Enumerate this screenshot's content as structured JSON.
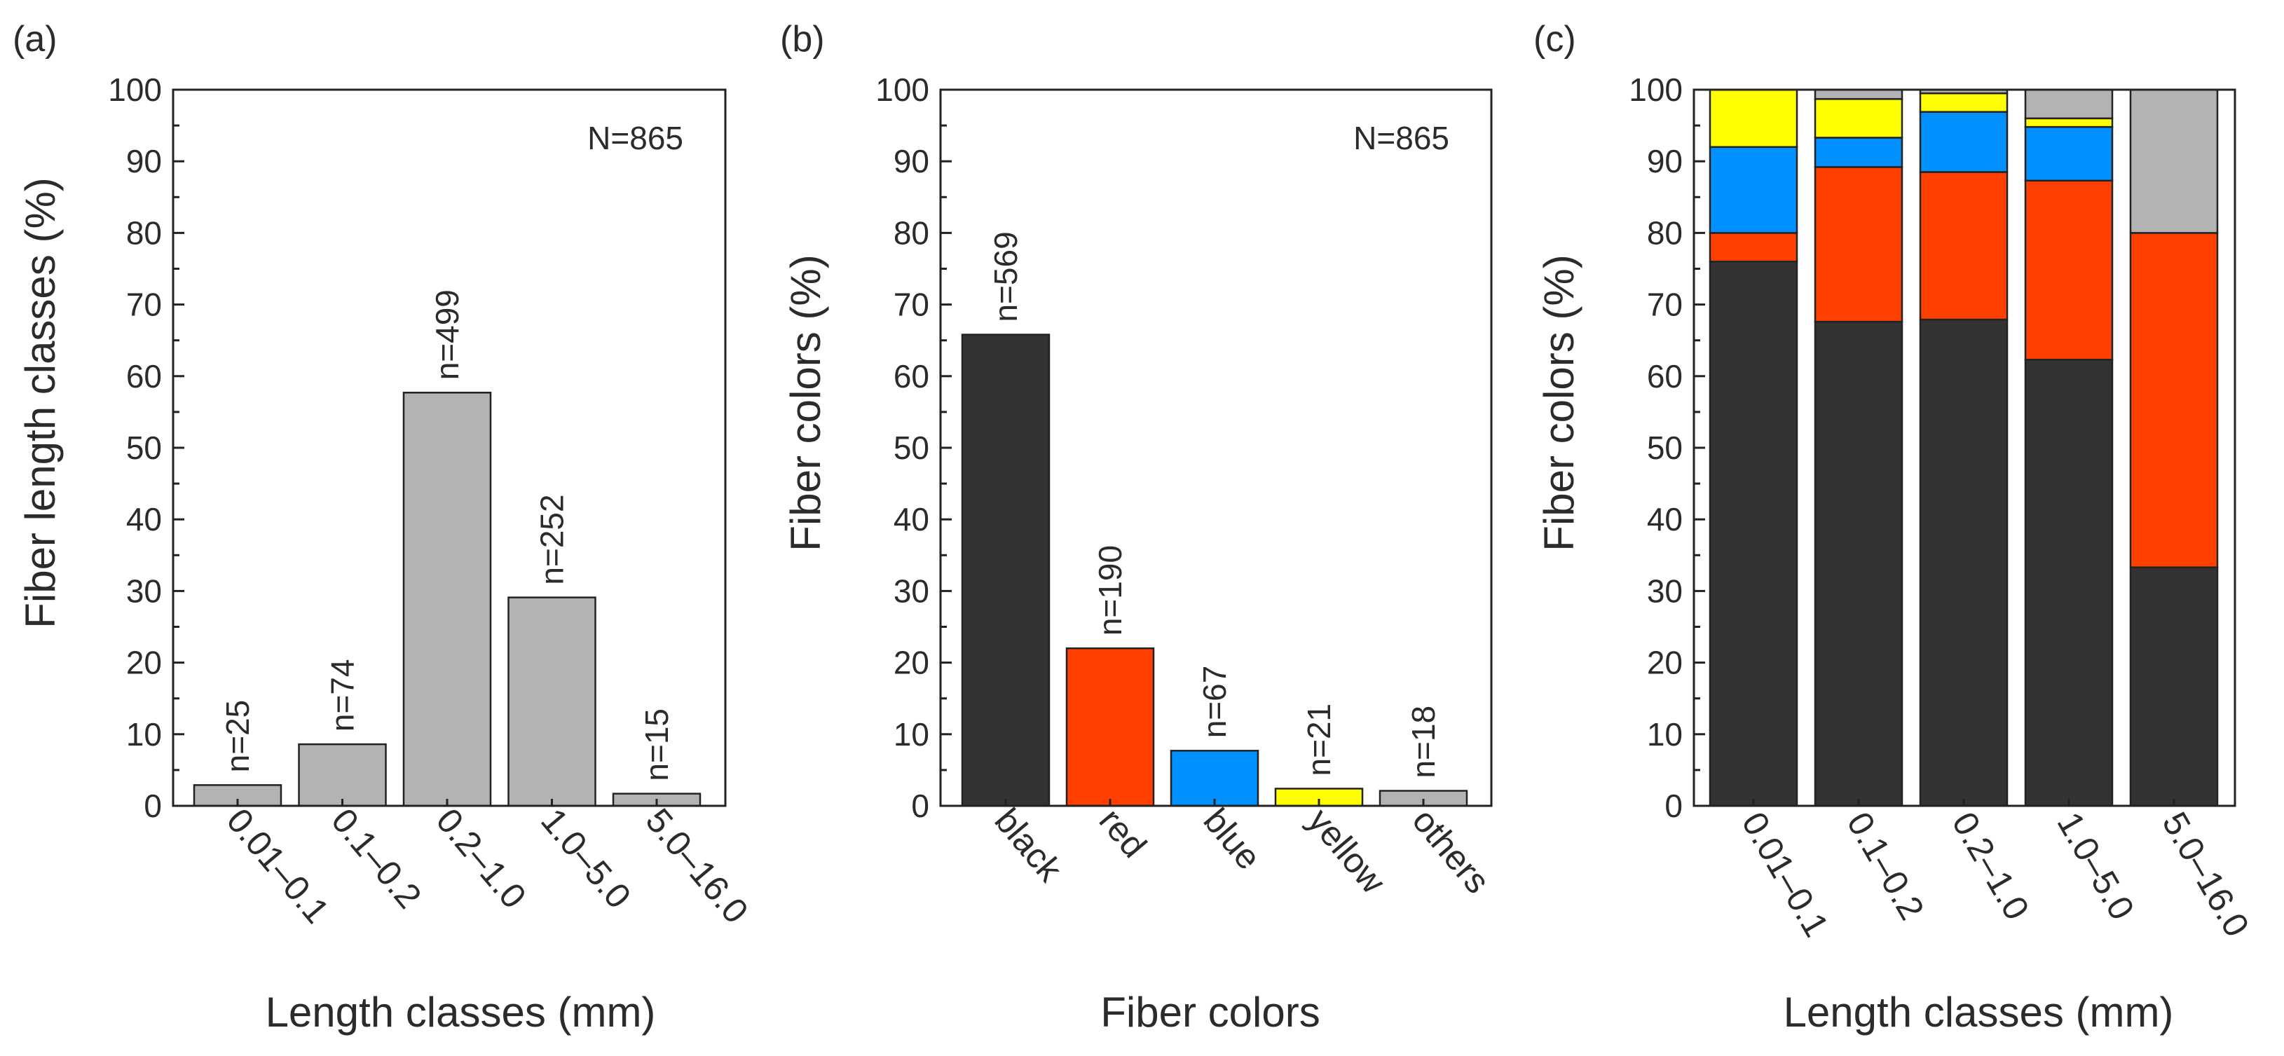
{
  "chart_data": [
    {
      "type": "bar",
      "panel_label": "(a)",
      "total_label": "N=865",
      "xlabel": "Length classes (mm)",
      "ylabel": "Fiber length classes (%)",
      "ylim": [
        0,
        100
      ],
      "yticks": [
        "0",
        "10",
        "20",
        "30",
        "40",
        "50",
        "60",
        "70",
        "80",
        "90",
        "100"
      ],
      "categories": [
        "0.01–0.1",
        "0.1–0.2",
        "0.2–1.0",
        "1.0–5.0",
        "5.0–16.0"
      ],
      "values": [
        2.9,
        8.6,
        57.7,
        29.1,
        1.7
      ],
      "bar_labels": [
        "n=25",
        "n=74",
        "n=499",
        "n=252",
        "n=15"
      ],
      "colors": [
        "#b3b3b3",
        "#b3b3b3",
        "#b3b3b3",
        "#b3b3b3",
        "#b3b3b3"
      ]
    },
    {
      "type": "bar",
      "panel_label": "(b)",
      "total_label": "N=865",
      "xlabel": "Fiber colors",
      "ylabel": "Fiber colors (%)",
      "ylim": [
        0,
        100
      ],
      "yticks": [
        "0",
        "10",
        "20",
        "30",
        "40",
        "50",
        "60",
        "70",
        "80",
        "90",
        "100"
      ],
      "categories": [
        "black",
        "red",
        "blue",
        "yellow",
        "others"
      ],
      "values": [
        65.8,
        22.0,
        7.7,
        2.4,
        2.1
      ],
      "bar_labels": [
        "n=569",
        "n=190",
        "n=67",
        "n=21",
        "n=18"
      ],
      "colors": [
        "#333333",
        "#ff4000",
        "#0090ff",
        "#ffff00",
        "#b3b3b3"
      ]
    },
    {
      "type": "bar",
      "stacked": true,
      "panel_label": "(c)",
      "xlabel": "Length classes (mm)",
      "ylabel": "Fiber colors (%)",
      "ylim": [
        0,
        100
      ],
      "yticks": [
        "0",
        "10",
        "20",
        "30",
        "40",
        "50",
        "60",
        "70",
        "80",
        "90",
        "100"
      ],
      "categories": [
        "0.01–0.1",
        "0.1–0.2",
        "0.2–1.0",
        "1.0–5.0",
        "5.0–16.0"
      ],
      "series": [
        {
          "name": "black",
          "color": "#333333",
          "values": [
            76.0,
            67.6,
            67.9,
            62.3,
            33.3
          ]
        },
        {
          "name": "red",
          "color": "#ff4000",
          "values": [
            4.0,
            21.6,
            20.6,
            25.0,
            46.7
          ]
        },
        {
          "name": "blue",
          "color": "#0090ff",
          "values": [
            12.0,
            4.1,
            8.4,
            7.5,
            0
          ]
        },
        {
          "name": "yellow",
          "color": "#ffff00",
          "values": [
            8.0,
            5.4,
            2.6,
            1.2,
            0
          ]
        },
        {
          "name": "others",
          "color": "#b3b3b3",
          "values": [
            0,
            1.3,
            0.5,
            4.0,
            20.0
          ]
        }
      ]
    }
  ]
}
